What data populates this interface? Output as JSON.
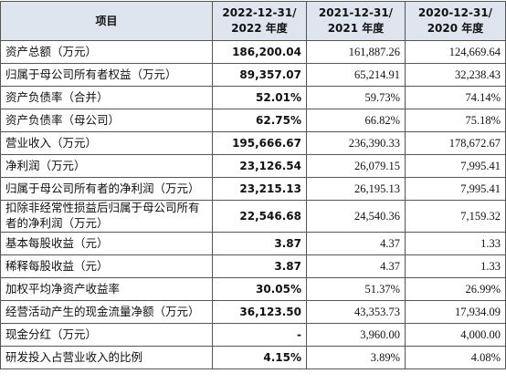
{
  "table": {
    "header": [
      "项目",
      "2022-12-31/\n2022 年度",
      "2021-12-31/\n2021 年度",
      "2020-12-31/\n2020 年度"
    ],
    "rows": [
      [
        "资产总额（万元）",
        "186,200.04",
        "161,887.26",
        "124,669.64"
      ],
      [
        "归属于母公司所有者权益（万元）",
        "89,357.07",
        "65,214.91",
        "32,238.43"
      ],
      [
        "资产负债率（合并）",
        "52.01%",
        "59.73%",
        "74.14%"
      ],
      [
        "资产负债率（母公司）",
        "62.75%",
        "66.82%",
        "75.18%"
      ],
      [
        "营业收入（万元）",
        "195,666.67",
        "236,390.33",
        "178,672.67"
      ],
      [
        "净利润（万元）",
        "23,126.54",
        "26,079.15",
        "7,995.41"
      ],
      [
        "归属于母公司所有者的净利润（万元）",
        "23,215.13",
        "26,195.13",
        "7,995.41"
      ],
      [
        "扣除非经常性损益后归属于母公司所有者的净利润（万元）",
        "22,546.68",
        "24,540.36",
        "7,159.32"
      ],
      [
        "基本每股收益（元）",
        "3.87",
        "4.37",
        "1.33"
      ],
      [
        "稀释每股收益（元）",
        "3.87",
        "4.37",
        "1.33"
      ],
      [
        "加权平均净资产收益率",
        "30.05%",
        "51.37%",
        "26.99%"
      ],
      [
        "经营活动产生的现金流量净额（万元）",
        "36,123.50",
        "43,353.73",
        "17,934.09"
      ],
      [
        "现金分红（万元）",
        "-",
        "3,960.00",
        "4,000.00"
      ],
      [
        "研发投入占营业收入的比例",
        "4.15%",
        "3.89%",
        "4.08%"
      ]
    ]
  }
}
